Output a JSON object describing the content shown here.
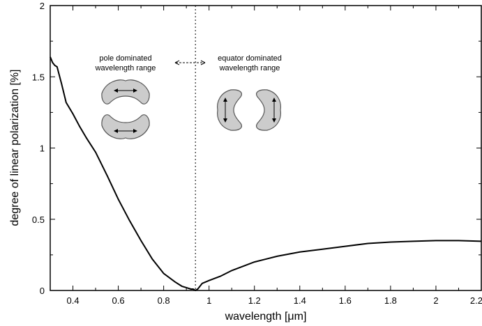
{
  "chart_data": {
    "type": "line",
    "xlabel": "wavelength [μm]",
    "ylabel": "degree of linear polarization [%]",
    "xlim": [
      0.3,
      2.2
    ],
    "ylim": [
      0,
      2
    ],
    "grid": false,
    "x_ticks": [
      0.4,
      0.6,
      0.8,
      1,
      1.2,
      1.4,
      1.6,
      1.8,
      2,
      2.2
    ],
    "x_tick_labels": [
      "0.4",
      "0.6",
      "0.8",
      "1",
      "1.2",
      "1.4",
      "1.6",
      "1.8",
      "2",
      "2.2"
    ],
    "y_ticks": [
      0,
      0.5,
      1,
      1.5,
      2
    ],
    "y_tick_labels": [
      "0",
      "0.5",
      "1",
      "1.5",
      "2"
    ],
    "divider_x": 0.94,
    "series": [
      {
        "x": [
          0.3,
          0.31,
          0.32,
          0.33,
          0.35,
          0.37,
          0.4,
          0.43,
          0.46,
          0.5,
          0.55,
          0.6,
          0.65,
          0.7,
          0.75,
          0.8,
          0.85,
          0.88,
          0.9,
          0.92,
          0.93,
          0.94,
          0.95,
          0.96,
          0.97,
          1.0,
          1.05,
          1.1,
          1.2,
          1.3,
          1.4,
          1.5,
          1.6,
          1.7,
          1.8,
          1.9,
          2.0,
          2.1,
          2.2
        ],
        "values": [
          1.64,
          1.6,
          1.58,
          1.57,
          1.45,
          1.32,
          1.24,
          1.15,
          1.07,
          0.97,
          0.81,
          0.64,
          0.49,
          0.35,
          0.22,
          0.12,
          0.06,
          0.03,
          0.02,
          0.01,
          0.01,
          0.0,
          0.01,
          0.03,
          0.05,
          0.07,
          0.1,
          0.14,
          0.2,
          0.24,
          0.27,
          0.29,
          0.31,
          0.33,
          0.34,
          0.345,
          0.35,
          0.35,
          0.345
        ]
      }
    ],
    "annotations": {
      "left_line1": "pole dominated",
      "left_line2": "wavelength range",
      "right_line1": "equator dominated",
      "right_line2": "wavelength range"
    }
  }
}
